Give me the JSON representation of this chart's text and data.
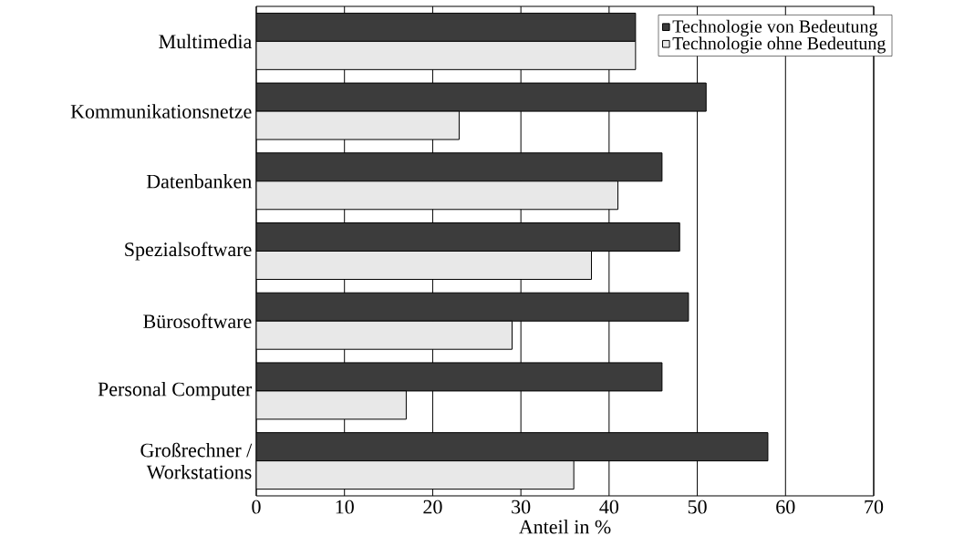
{
  "chart_data": {
    "type": "bar",
    "orientation": "horizontal",
    "xlabel": "Anteil in %",
    "categories": [
      "Multimedia",
      "Kommunikationsnetze",
      "Datenbanken",
      "Spezialsoftware",
      "Bürosoftware",
      "Personal Computer",
      "Großrechner / Workstations"
    ],
    "series": [
      {
        "name": "Technologie von Bedeutung",
        "color": "#3c3c3c",
        "values": [
          43,
          51,
          46,
          48,
          49,
          46,
          58
        ]
      },
      {
        "name": "Technologie ohne Bedeutung",
        "color": "#e8e8e8",
        "values": [
          43,
          23,
          41,
          38,
          29,
          17,
          36
        ]
      }
    ],
    "xlim": [
      0,
      70
    ],
    "xticks": [
      0,
      10,
      20,
      30,
      40,
      50,
      60,
      70
    ],
    "grid": "x",
    "legend": "top right"
  }
}
